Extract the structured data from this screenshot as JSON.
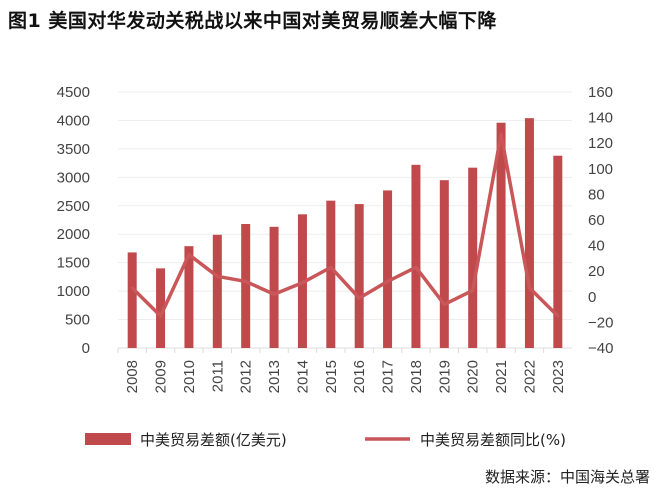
{
  "chart_data": {
    "type": "bar+line",
    "title": "图1  美国对华发动关税战以来中国对美贸易顺差大幅下降",
    "categories": [
      "2008",
      "2009",
      "2010",
      "2011",
      "2012",
      "2013",
      "2014",
      "2015",
      "2016",
      "2017",
      "2018",
      "2019",
      "2020",
      "2021",
      "2022",
      "2023"
    ],
    "series": [
      {
        "name": "中美贸易差额(亿美元)",
        "type": "bar",
        "axis": "left",
        "color": "#c0494b",
        "values": [
          1680,
          1400,
          1790,
          1990,
          2180,
          2130,
          2350,
          2590,
          2530,
          2770,
          3220,
          2950,
          3170,
          3960,
          4040,
          3380
        ]
      },
      {
        "name": "中美贸易差额同比(%)",
        "type": "line",
        "axis": "right",
        "color": "#c9575a",
        "values": [
          7,
          -15,
          33,
          16,
          12,
          2,
          11,
          23,
          -1,
          12,
          23,
          -6,
          5,
          127,
          7,
          -15
        ]
      }
    ],
    "left_axis": {
      "ylim": [
        0,
        4500
      ],
      "ticks": [
        "0",
        "500",
        "1000",
        "1500",
        "2000",
        "2500",
        "3000",
        "3500",
        "4000",
        "4500"
      ]
    },
    "right_axis": {
      "ylim": [
        -40,
        160
      ],
      "ticks": [
        "-40",
        "-20",
        "0",
        "20",
        "40",
        "60",
        "80",
        "100",
        "120",
        "140",
        "160"
      ]
    },
    "grid": true,
    "legend": "bottom",
    "source": "数据来源：中国海关总署"
  }
}
